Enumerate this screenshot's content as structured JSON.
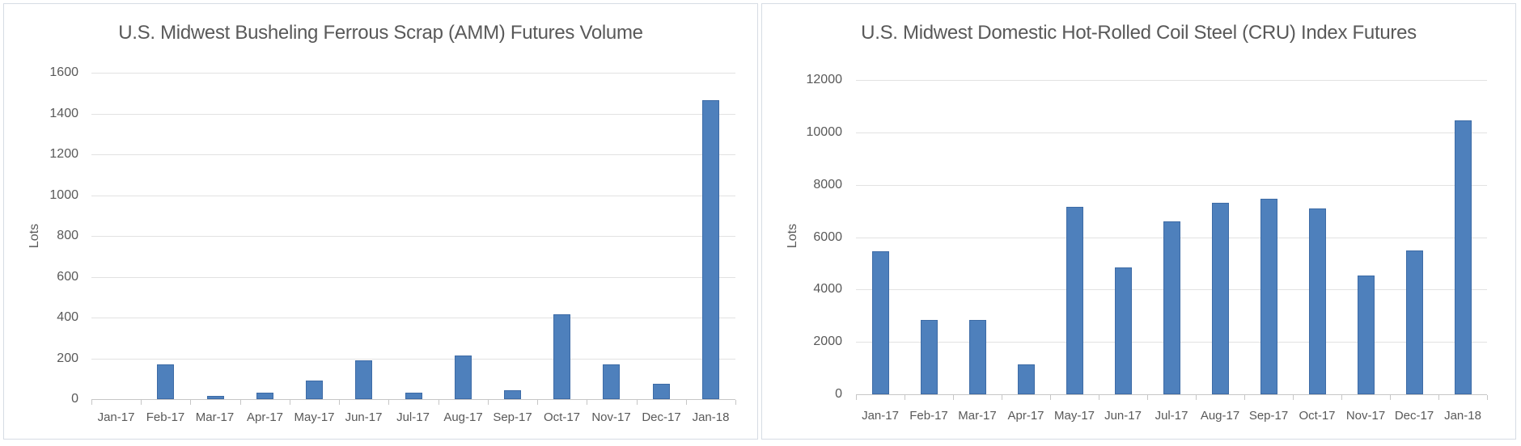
{
  "figure": {
    "background": "#ffffff",
    "panel_border_color": "#d6dce4",
    "text_color": "#595959",
    "gridline_color": "#e2e2e2",
    "axis_color": "#c6c6c6"
  },
  "chart_data": [
    {
      "type": "bar",
      "title": "U.S. Midwest Busheling Ferrous Scrap (AMM) Futures Volume",
      "xlabel": "",
      "ylabel": "Lots",
      "categories": [
        "Jan-17",
        "Feb-17",
        "Mar-17",
        "Apr-17",
        "May-17",
        "Jun-17",
        "Jul-17",
        "Aug-17",
        "Sep-17",
        "Oct-17",
        "Nov-17",
        "Dec-17",
        "Jan-18"
      ],
      "values": [
        0,
        170,
        15,
        30,
        90,
        190,
        30,
        215,
        45,
        415,
        170,
        75,
        1465
      ],
      "ylim": [
        0,
        1600
      ],
      "ytick_step": 200,
      "yticks": [
        0,
        200,
        400,
        600,
        800,
        1000,
        1200,
        1400,
        1600
      ],
      "grid": true,
      "legend": "none",
      "bar_color": "#4e80bc",
      "bar_border_color": "#3d6ba6"
    },
    {
      "type": "bar",
      "title": "U.S. Midwest Domestic Hot-Rolled Coil Steel (CRU) Index Futures",
      "xlabel": "",
      "ylabel": "Lots",
      "categories": [
        "Jan-17",
        "Feb-17",
        "Mar-17",
        "Apr-17",
        "May-17",
        "Jun-17",
        "Jul-17",
        "Aug-17",
        "Sep-17",
        "Oct-17",
        "Nov-17",
        "Dec-17",
        "Jan-18"
      ],
      "values": [
        5450,
        2850,
        2850,
        1150,
        7150,
        4850,
        6600,
        7300,
        7450,
        7100,
        4550,
        5500,
        10450
      ],
      "ylim": [
        0,
        12000
      ],
      "ytick_step": 2000,
      "yticks": [
        0,
        2000,
        4000,
        6000,
        8000,
        10000,
        12000
      ],
      "grid": true,
      "legend": "none",
      "bar_color": "#4e80bc",
      "bar_border_color": "#3d6ba6"
    }
  ]
}
